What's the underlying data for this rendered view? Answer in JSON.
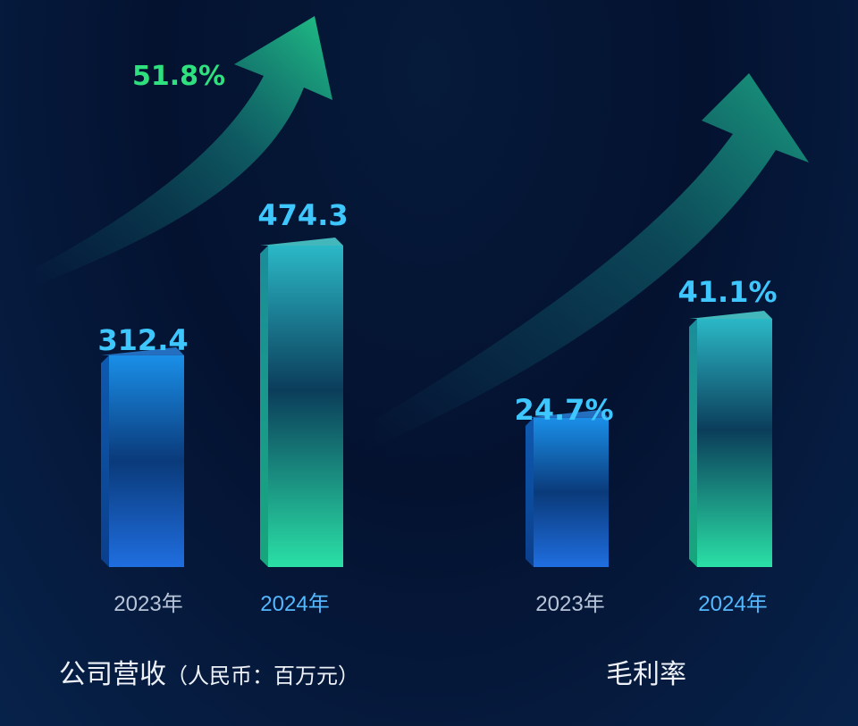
{
  "chart_data": [
    {
      "type": "bar",
      "title": "公司营收",
      "unit": "（人民币：百万元）",
      "categories": [
        "2023年",
        "2024年"
      ],
      "values": [
        312.4,
        474.3
      ],
      "value_labels": [
        "312.4",
        "474.3"
      ],
      "growth_label": "51.8%",
      "ylim": [
        0,
        520
      ],
      "colors": [
        "#1f7fe0",
        "#2ad6b0"
      ]
    },
    {
      "type": "bar",
      "title": "毛利率",
      "unit": "",
      "categories": [
        "2023年",
        "2024年"
      ],
      "values": [
        24.7,
        41.1
      ],
      "value_labels": [
        "24.7%",
        "41.1%"
      ],
      "growth_label": "",
      "ylim": [
        0,
        50
      ],
      "colors": [
        "#1f7fe0",
        "#2ad6b0"
      ]
    }
  ]
}
